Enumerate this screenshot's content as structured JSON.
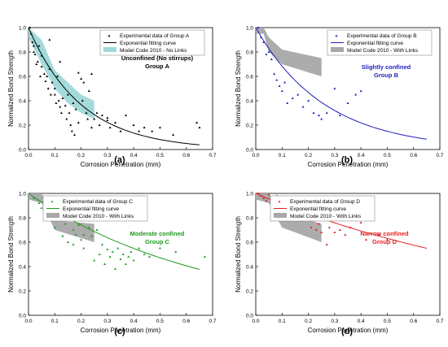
{
  "chart_data": [
    {
      "type": "scatter",
      "panel_label": "(a)",
      "xlabel": "Corrosion Penetration (mm)",
      "ylabel": "Normalized Bond Strength",
      "xlim": [
        0,
        0.7
      ],
      "ylim": [
        0,
        1.0
      ],
      "xticks": [
        "0.0",
        "0.1",
        "0.2",
        "0.3",
        "0.4",
        "0.5",
        "0.6",
        "0.7"
      ],
      "yticks": [
        "0.0",
        "0.2",
        "0.4",
        "0.6",
        "0.8",
        "1.0"
      ],
      "annotation": [
        "Unconfined (No stirrups)",
        "Group A"
      ],
      "annotation_color": "#000000",
      "series_color": "#000000",
      "fit_color": "#000000",
      "band_color": "#9fd8d8",
      "legend": {
        "position": "top-right",
        "points": "Experimental data of Group A",
        "fit": "Exponential fitting curve",
        "band": "Model Code 2010 - No Links"
      },
      "fit": {
        "a": 1.0,
        "b": 5.0
      },
      "band": {
        "upper": [
          [
            0,
            1.0
          ],
          [
            0.05,
            0.9
          ],
          [
            0.1,
            0.65
          ],
          [
            0.15,
            0.55
          ],
          [
            0.2,
            0.45
          ],
          [
            0.25,
            0.4
          ]
        ],
        "lower": [
          [
            0,
            0.92
          ],
          [
            0.05,
            0.7
          ],
          [
            0.1,
            0.5
          ],
          [
            0.15,
            0.38
          ],
          [
            0.2,
            0.3
          ],
          [
            0.25,
            0.25
          ]
        ]
      },
      "points": [
        [
          0.005,
          1.0
        ],
        [
          0.01,
          0.95
        ],
        [
          0.015,
          0.88
        ],
        [
          0.02,
          0.85
        ],
        [
          0.02,
          0.8
        ],
        [
          0.025,
          0.78
        ],
        [
          0.03,
          0.7
        ],
        [
          0.035,
          0.72
        ],
        [
          0.04,
          0.85
        ],
        [
          0.045,
          0.6
        ],
        [
          0.05,
          0.77
        ],
        [
          0.05,
          0.68
        ],
        [
          0.06,
          0.62
        ],
        [
          0.065,
          0.56
        ],
        [
          0.07,
          0.6
        ],
        [
          0.075,
          0.5
        ],
        [
          0.08,
          0.66
        ],
        [
          0.085,
          0.45
        ],
        [
          0.09,
          0.55
        ],
        [
          0.1,
          0.5
        ],
        [
          0.1,
          0.45
        ],
        [
          0.105,
          0.38
        ],
        [
          0.11,
          0.6
        ],
        [
          0.115,
          0.4
        ],
        [
          0.12,
          0.35
        ],
        [
          0.125,
          0.3
        ],
        [
          0.13,
          0.42
        ],
        [
          0.14,
          0.36
        ],
        [
          0.145,
          0.25
        ],
        [
          0.15,
          0.45
        ],
        [
          0.155,
          0.3
        ],
        [
          0.16,
          0.2
        ],
        [
          0.165,
          0.15
        ],
        [
          0.17,
          0.38
        ],
        [
          0.175,
          0.12
        ],
        [
          0.18,
          0.33
        ],
        [
          0.19,
          0.22
        ],
        [
          0.2,
          0.58
        ],
        [
          0.205,
          0.4
        ],
        [
          0.21,
          0.55
        ],
        [
          0.22,
          0.3
        ],
        [
          0.225,
          0.25
        ],
        [
          0.23,
          0.48
        ],
        [
          0.24,
          0.18
        ],
        [
          0.25,
          0.25
        ],
        [
          0.26,
          0.3
        ],
        [
          0.27,
          0.2
        ],
        [
          0.28,
          0.28
        ],
        [
          0.3,
          0.24
        ],
        [
          0.31,
          0.18
        ],
        [
          0.33,
          0.22
        ],
        [
          0.35,
          0.15
        ],
        [
          0.37,
          0.28
        ],
        [
          0.4,
          0.2
        ],
        [
          0.42,
          0.15
        ],
        [
          0.44,
          0.18
        ],
        [
          0.47,
          0.15
        ],
        [
          0.5,
          0.18
        ],
        [
          0.55,
          0.12
        ],
        [
          0.64,
          0.22
        ],
        [
          0.65,
          0.18
        ],
        [
          0.08,
          0.9
        ],
        [
          0.12,
          0.72
        ],
        [
          0.19,
          0.63
        ],
        [
          0.24,
          0.62
        ],
        [
          0.3,
          0.26
        ]
      ]
    },
    {
      "type": "scatter",
      "panel_label": "(b)",
      "xlabel": "Corrosion Penetration (mm)",
      "ylabel": "Normalized Bond Strength",
      "xlim": [
        0,
        0.7
      ],
      "ylim": [
        0,
        1.0
      ],
      "xticks": [
        "0.0",
        "0.1",
        "0.2",
        "0.3",
        "0.4",
        "0.5",
        "0.6",
        "0.7"
      ],
      "yticks": [
        "0.0",
        "0.2",
        "0.4",
        "0.6",
        "0.8",
        "1.0"
      ],
      "annotation": [
        "Slightly confined",
        "Group B"
      ],
      "annotation_color": "#1f1fbf",
      "series_color": "#1f1fbf",
      "fit_color": "#1f1fbf",
      "band_color": "#a8a8a8",
      "legend": {
        "position": "top-right",
        "points": "Experimental data of Group B",
        "fit": "Exponential fitting curve",
        "band": "Model Code 2010 - With Links"
      },
      "fit": {
        "a": 1.0,
        "b": 3.8
      },
      "band": {
        "upper": [
          [
            0,
            1.0
          ],
          [
            0.03,
            1.0
          ],
          [
            0.05,
            0.92
          ],
          [
            0.1,
            0.82
          ],
          [
            0.25,
            0.75
          ]
        ],
        "lower": [
          [
            0,
            0.95
          ],
          [
            0.03,
            0.95
          ],
          [
            0.05,
            0.8
          ],
          [
            0.1,
            0.7
          ],
          [
            0.25,
            0.6
          ]
        ]
      },
      "points": [
        [
          0.01,
          1.0
        ],
        [
          0.02,
          0.92
        ],
        [
          0.03,
          0.88
        ],
        [
          0.04,
          0.78
        ],
        [
          0.05,
          0.8
        ],
        [
          0.06,
          0.74
        ],
        [
          0.07,
          0.62
        ],
        [
          0.08,
          0.57
        ],
        [
          0.09,
          0.52
        ],
        [
          0.1,
          0.48
        ],
        [
          0.11,
          0.55
        ],
        [
          0.12,
          0.38
        ],
        [
          0.14,
          0.42
        ],
        [
          0.16,
          0.45
        ],
        [
          0.18,
          0.35
        ],
        [
          0.2,
          0.4
        ],
        [
          0.22,
          0.3
        ],
        [
          0.24,
          0.28
        ],
        [
          0.25,
          0.25
        ],
        [
          0.27,
          0.3
        ],
        [
          0.3,
          0.5
        ],
        [
          0.32,
          0.28
        ],
        [
          0.35,
          0.38
        ],
        [
          0.38,
          0.45
        ],
        [
          0.4,
          0.48
        ]
      ]
    },
    {
      "type": "scatter",
      "panel_label": "(c)",
      "xlabel": "Corrosion Penetration (mm)",
      "ylabel": "Normalized Bond Strength",
      "xlim": [
        0,
        0.7
      ],
      "ylim": [
        0,
        1.0
      ],
      "xticks": [
        "0.0",
        "0.1",
        "0.2",
        "0.3",
        "0.4",
        "0.5",
        "0.6",
        "0.7"
      ],
      "yticks": [
        "0.0",
        "0.2",
        "0.4",
        "0.6",
        "0.8",
        "1.0"
      ],
      "annotation": [
        "Moderate confined",
        "Group C"
      ],
      "annotation_color": "#1e9a1e",
      "series_color": "#1e9a1e",
      "fit_color": "#1e9a1e",
      "band_color": "#a8a8a8",
      "legend": {
        "position": "top-left",
        "points": "Experimental data of Group C",
        "fit": "Exponential fitting curve",
        "band": "Model Code 2010 - With Links"
      },
      "fit": {
        "a": 1.0,
        "b": 1.5
      },
      "band": {
        "upper": [
          [
            0,
            1.0
          ],
          [
            0.05,
            1.0
          ],
          [
            0.1,
            0.78
          ],
          [
            0.25,
            0.75
          ]
        ],
        "lower": [
          [
            0,
            0.95
          ],
          [
            0.05,
            0.92
          ],
          [
            0.1,
            0.7
          ],
          [
            0.25,
            0.6
          ]
        ]
      },
      "points": [
        [
          0.02,
          0.96
        ],
        [
          0.04,
          0.92
        ],
        [
          0.05,
          0.88
        ],
        [
          0.06,
          0.82
        ],
        [
          0.07,
          0.78
        ],
        [
          0.08,
          0.86
        ],
        [
          0.09,
          0.95
        ],
        [
          0.1,
          0.72
        ],
        [
          0.11,
          0.8
        ],
        [
          0.12,
          0.9
        ],
        [
          0.13,
          0.85
        ],
        [
          0.14,
          0.75
        ],
        [
          0.15,
          0.6
        ],
        [
          0.16,
          0.82
        ],
        [
          0.17,
          0.7
        ],
        [
          0.18,
          0.66
        ],
        [
          0.19,
          0.74
        ],
        [
          0.2,
          0.62
        ],
        [
          0.21,
          0.55
        ],
        [
          0.22,
          0.78
        ],
        [
          0.23,
          0.72
        ],
        [
          0.24,
          0.65
        ],
        [
          0.25,
          0.45
        ],
        [
          0.26,
          0.7
        ],
        [
          0.27,
          0.5
        ],
        [
          0.28,
          0.58
        ],
        [
          0.29,
          0.42
        ],
        [
          0.3,
          0.54
        ],
        [
          0.31,
          0.48
        ],
        [
          0.32,
          0.52
        ],
        [
          0.33,
          0.38
        ],
        [
          0.34,
          0.55
        ],
        [
          0.35,
          0.46
        ],
        [
          0.36,
          0.5
        ],
        [
          0.37,
          0.42
        ],
        [
          0.38,
          0.48
        ],
        [
          0.39,
          0.52
        ],
        [
          0.4,
          0.45
        ],
        [
          0.42,
          0.55
        ],
        [
          0.44,
          0.5
        ],
        [
          0.46,
          0.48
        ],
        [
          0.5,
          0.55
        ],
        [
          0.56,
          0.52
        ],
        [
          0.67,
          0.48
        ],
        [
          0.13,
          0.65
        ],
        [
          0.17,
          0.58
        ],
        [
          0.21,
          0.66
        ]
      ]
    },
    {
      "type": "scatter",
      "panel_label": "(d)",
      "xlabel": "Corrosion Penetration (mm)",
      "ylabel": "Normalized Bond Strength",
      "xlim": [
        0,
        0.7
      ],
      "ylim": [
        0,
        1.0
      ],
      "xticks": [
        "0.0",
        "0.1",
        "0.2",
        "0.3",
        "0.4",
        "0.5",
        "0.6",
        "0.7"
      ],
      "yticks": [
        "0.0",
        "0.2",
        "0.4",
        "0.6",
        "0.8",
        "1.0"
      ],
      "annotation": [
        "Narrow confined",
        "Group D"
      ],
      "annotation_color": "#e02020",
      "series_color": "#e02020",
      "fit_color": "#e02020",
      "band_color": "#a8a8a8",
      "legend": {
        "position": "top-left",
        "points": "Experimental data of Group D",
        "fit": "Exponential fitting curve",
        "band": "Model Code 2010 - With Links"
      },
      "fit": {
        "a": 1.0,
        "b": 0.92
      },
      "band": {
        "upper": [
          [
            0,
            1.0
          ],
          [
            0.05,
            1.0
          ],
          [
            0.1,
            0.85
          ],
          [
            0.25,
            0.75
          ]
        ],
        "lower": [
          [
            0,
            0.95
          ],
          [
            0.05,
            0.92
          ],
          [
            0.1,
            0.72
          ],
          [
            0.25,
            0.6
          ]
        ]
      },
      "points": [
        [
          0.01,
          1.0
        ],
        [
          0.02,
          0.98
        ],
        [
          0.03,
          0.96
        ],
        [
          0.04,
          0.94
        ],
        [
          0.05,
          0.99
        ],
        [
          0.06,
          0.95
        ],
        [
          0.07,
          0.92
        ],
        [
          0.08,
          0.98
        ],
        [
          0.09,
          0.9
        ],
        [
          0.1,
          0.94
        ],
        [
          0.11,
          0.88
        ],
        [
          0.12,
          0.97
        ],
        [
          0.13,
          0.86
        ],
        [
          0.14,
          0.9
        ],
        [
          0.15,
          0.84
        ],
        [
          0.16,
          0.88
        ],
        [
          0.17,
          0.8
        ],
        [
          0.18,
          0.85
        ],
        [
          0.19,
          0.78
        ],
        [
          0.2,
          0.9
        ],
        [
          0.21,
          0.72
        ],
        [
          0.22,
          0.82
        ],
        [
          0.23,
          0.7
        ],
        [
          0.24,
          0.75
        ],
        [
          0.25,
          0.68
        ],
        [
          0.26,
          0.8
        ],
        [
          0.27,
          0.58
        ],
        [
          0.28,
          0.72
        ],
        [
          0.3,
          0.68
        ],
        [
          0.32,
          0.7
        ],
        [
          0.34,
          0.66
        ],
        [
          0.36,
          0.72
        ],
        [
          0.38,
          0.82
        ],
        [
          0.4,
          0.76
        ],
        [
          0.42,
          0.62
        ],
        [
          0.47,
          0.66
        ],
        [
          0.5,
          0.62
        ]
      ]
    }
  ]
}
